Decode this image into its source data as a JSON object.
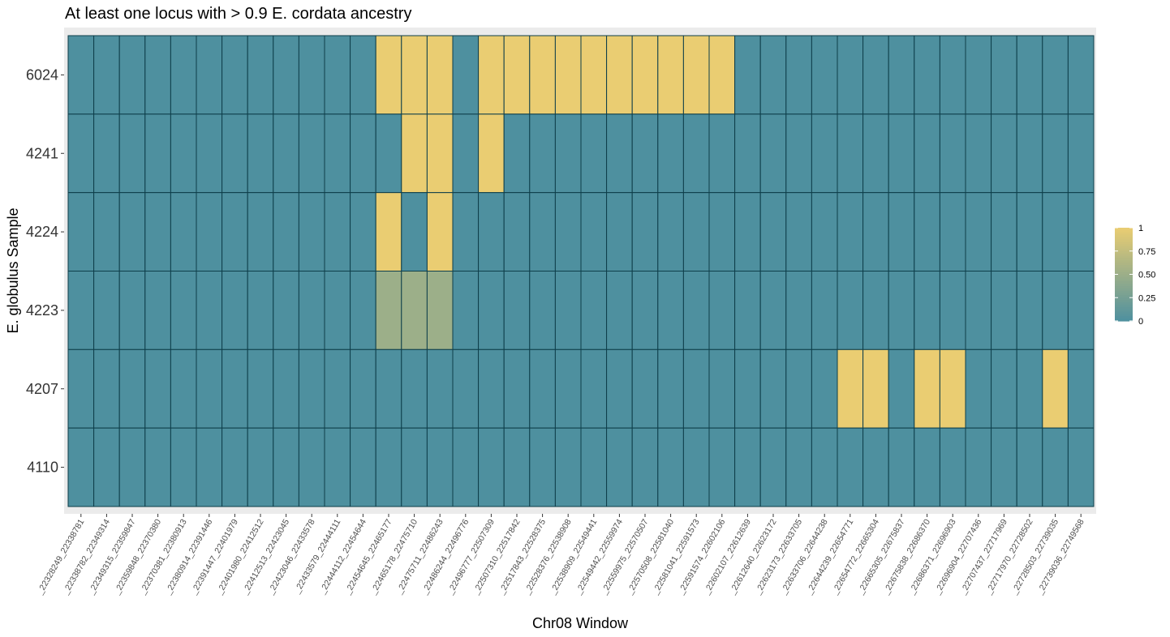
{
  "chart_data": {
    "type": "heatmap",
    "title": "At least one locus with > 0.9 E. cordata ancestry",
    "xlabel": "Chr08 Window",
    "ylabel": "E. globulus Sample",
    "x_categories": [
      "_22328249_22338781",
      "_22338782_22349314",
      "_22349315_22359847",
      "_22359848_22370380",
      "_22370381_22380913",
      "_22380914_22391446",
      "_22391447_22401979",
      "_22401980_22412512",
      "_22412513_22423045",
      "_22423046_22433578",
      "_22433579_22444111",
      "_22444112_22454644",
      "_22454645_22465177",
      "_22465178_22475710",
      "_22475711_22486243",
      "_22486244_22496776",
      "_22496777_22507309",
      "_22507310_22517842",
      "_22517843_22528375",
      "_22528376_22538908",
      "_22538909_22549441",
      "_22549442_22559974",
      "_22559975_22570507",
      "_22570508_22581040",
      "_22581041_22591573",
      "_22591574_22602106",
      "_22602107_22612639",
      "_22612640_22623172",
      "_22623173_22633705",
      "_22633706_22644238",
      "_22644239_22654771",
      "_22654772_22665304",
      "_22665305_22675837",
      "_22675838_22686370",
      "_22686371_22696903",
      "_22696904_22707436",
      "_22707437_22717969",
      "_22717970_22728502",
      "_22728503_22739035",
      "_22739036_22749568"
    ],
    "y_categories": [
      "6024",
      "4241",
      "4224",
      "4223",
      "4207",
      "4110"
    ],
    "values": [
      [
        0,
        0,
        0,
        0,
        0,
        0,
        0,
        0,
        0,
        0,
        0,
        0,
        1,
        1,
        1,
        0,
        1,
        1,
        1,
        1,
        1,
        1,
        1,
        1,
        1,
        1,
        0,
        0,
        0,
        0,
        0,
        0,
        0,
        0,
        0,
        0,
        0,
        0,
        0,
        0
      ],
      [
        0,
        0,
        0,
        0,
        0,
        0,
        0,
        0,
        0,
        0,
        0,
        0,
        0,
        1,
        1,
        0,
        1,
        0,
        0,
        0,
        0,
        0,
        0,
        0,
        0,
        0,
        0,
        0,
        0,
        0,
        0,
        0,
        0,
        0,
        0,
        0,
        0,
        0,
        0,
        0
      ],
      [
        0,
        0,
        0,
        0,
        0,
        0,
        0,
        0,
        0,
        0,
        0,
        0,
        1,
        0,
        1,
        0,
        0,
        0,
        0,
        0,
        0,
        0,
        0,
        0,
        0,
        0,
        0,
        0,
        0,
        0,
        0,
        0,
        0,
        0,
        0,
        0,
        0,
        0,
        0,
        0
      ],
      [
        0,
        0,
        0,
        0,
        0,
        0,
        0,
        0,
        0,
        0,
        0,
        0,
        0.5,
        0.5,
        0.5,
        0,
        0,
        0,
        0,
        0,
        0,
        0,
        0,
        0,
        0,
        0,
        0,
        0,
        0,
        0,
        0,
        0,
        0,
        0,
        0,
        0,
        0,
        0,
        0,
        0
      ],
      [
        0,
        0,
        0,
        0,
        0,
        0,
        0,
        0,
        0,
        0,
        0,
        0,
        0,
        0,
        0,
        0,
        0,
        0,
        0,
        0,
        0,
        0,
        0,
        0,
        0,
        0,
        0,
        0,
        0,
        0,
        1,
        1,
        0,
        1,
        1,
        0,
        0,
        0,
        1,
        0
      ],
      [
        0,
        0,
        0,
        0,
        0,
        0,
        0,
        0,
        0,
        0,
        0,
        0,
        0,
        0,
        0,
        0,
        0,
        0,
        0,
        0,
        0,
        0,
        0,
        0,
        0,
        0,
        0,
        0,
        0,
        0,
        0,
        0,
        0,
        0,
        0,
        0,
        0,
        0,
        0,
        0
      ]
    ],
    "zlim": [
      0,
      1
    ],
    "color_low": "#4E909F",
    "color_high": "#EACD72",
    "tile_border": "#0E3E4A",
    "panel_background": "#EBEBEB",
    "grid": false,
    "legend": {
      "placement": "right",
      "labels": [
        "1",
        "0.75",
        "0.50",
        "0.25",
        "0"
      ],
      "breaks": [
        1,
        0.75,
        0.5,
        0.25,
        0
      ]
    }
  }
}
